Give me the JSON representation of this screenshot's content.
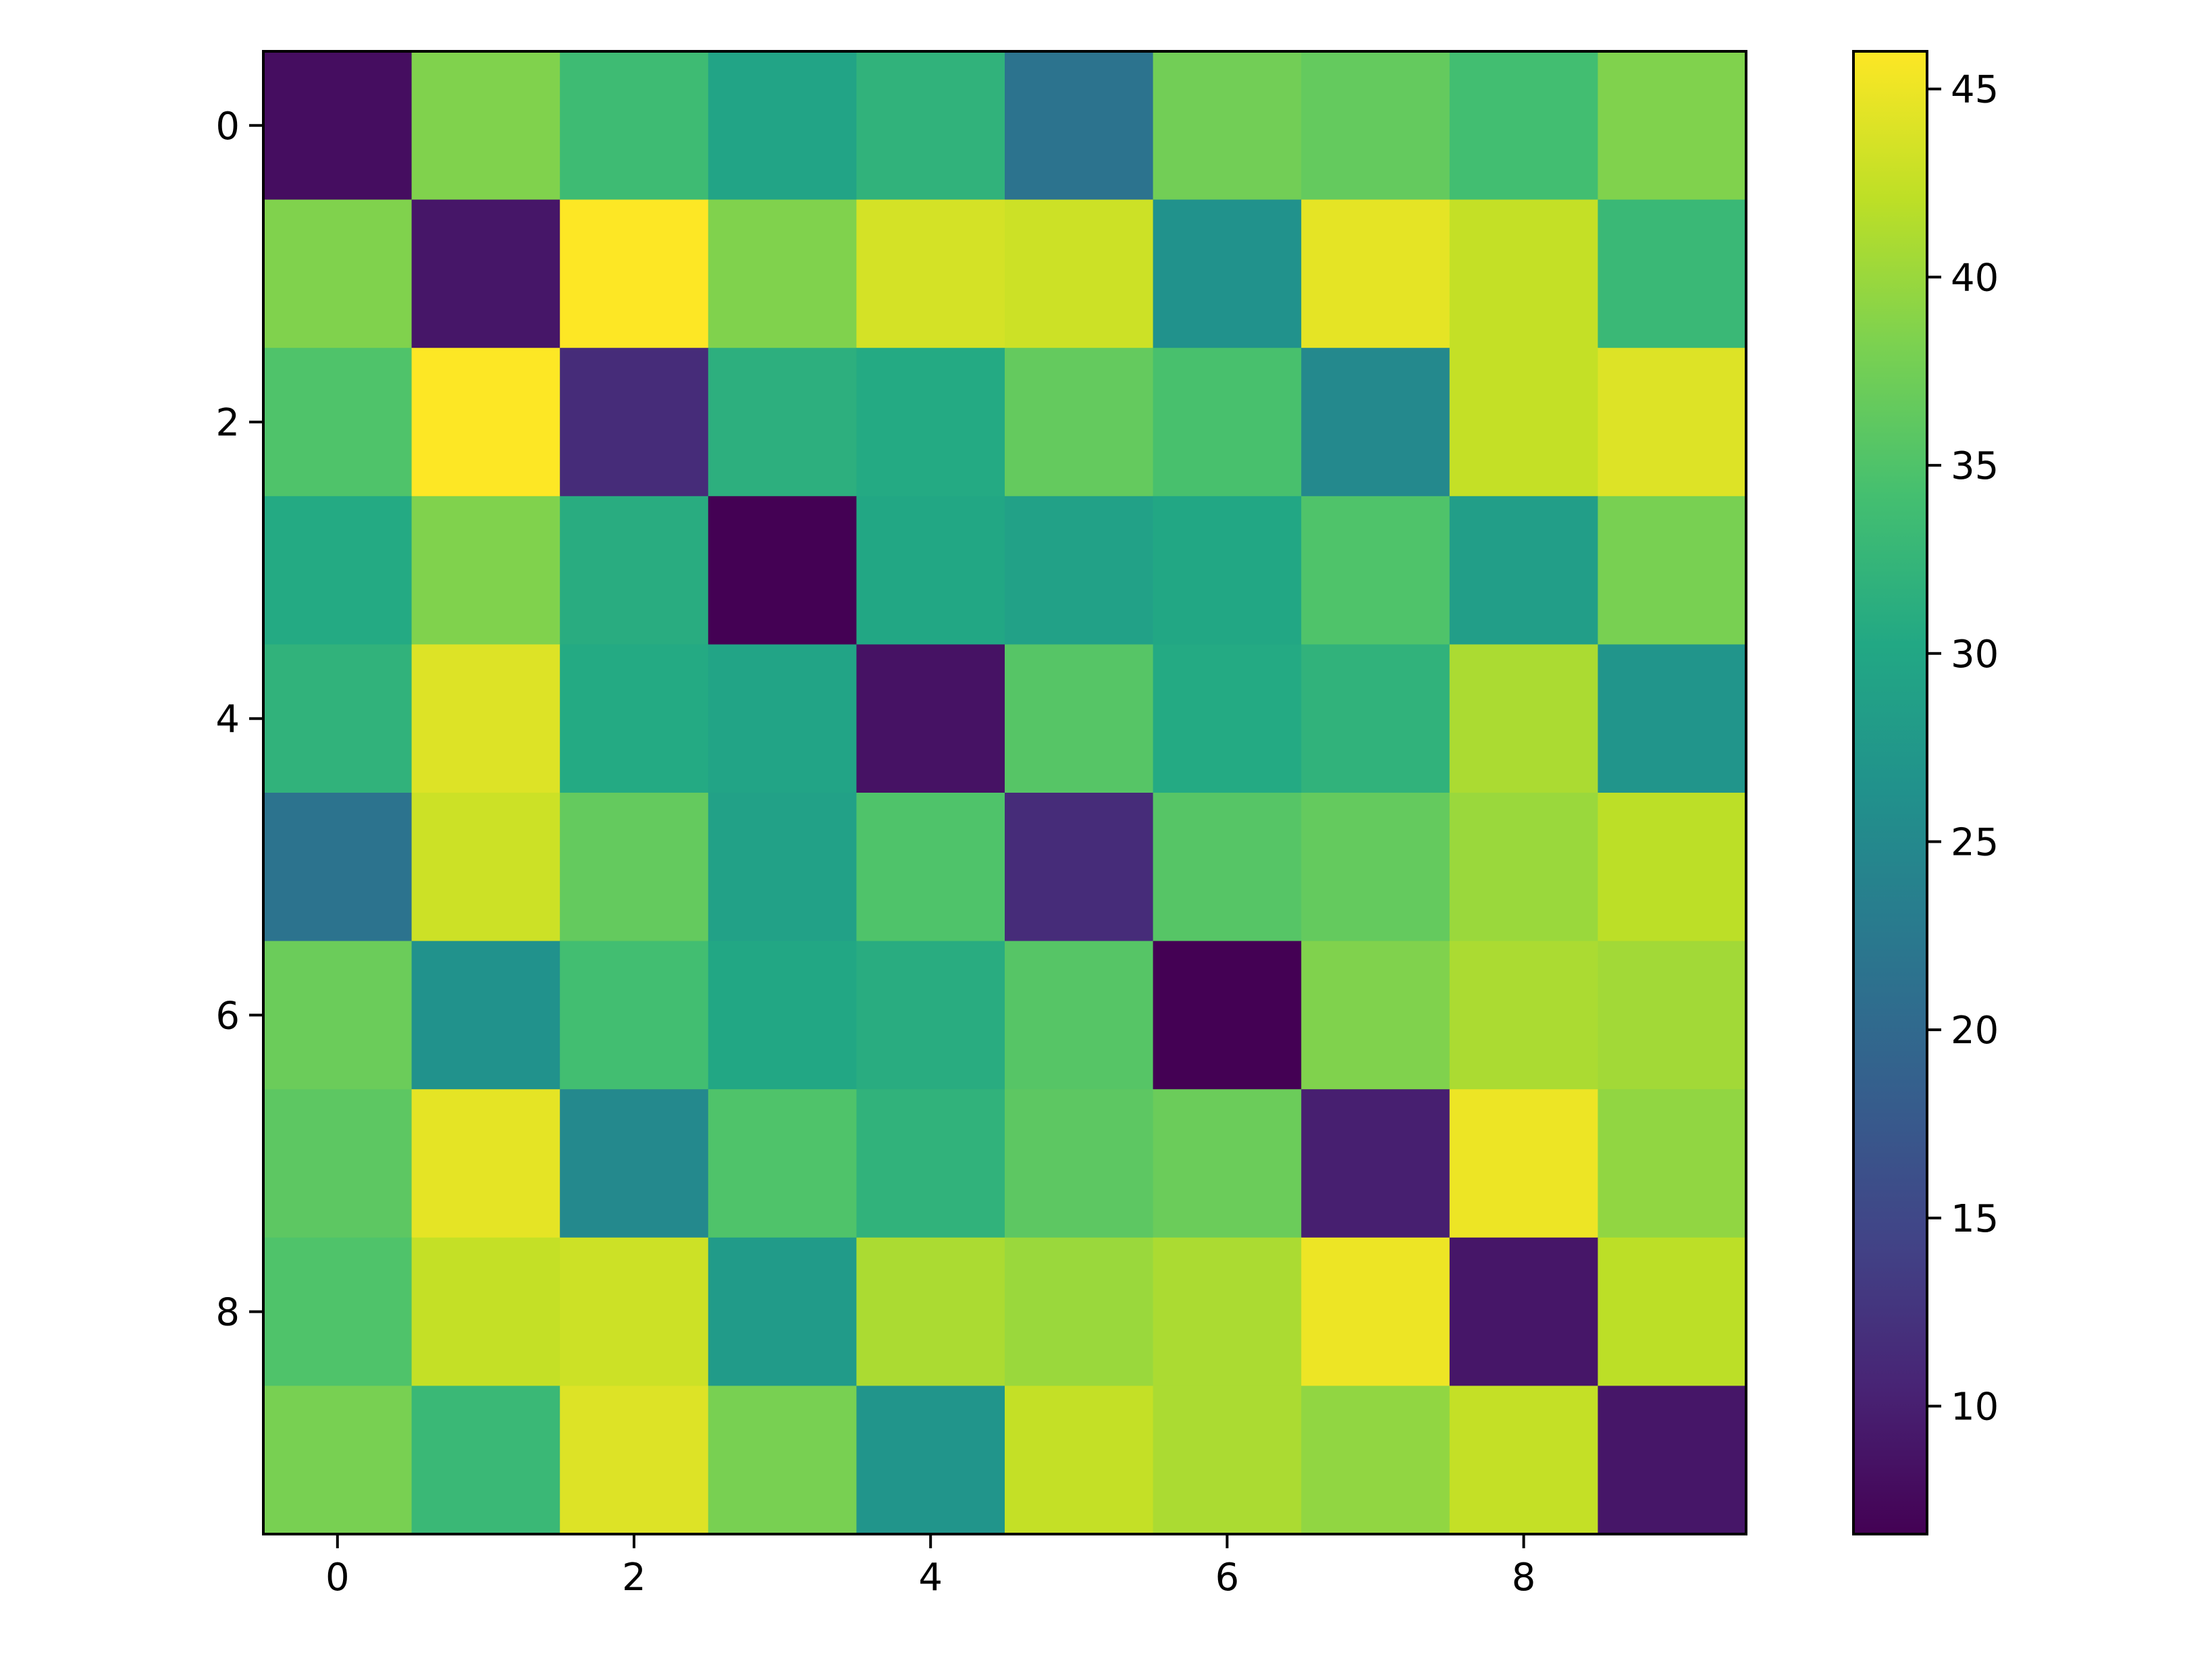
{
  "chart_data": {
    "type": "heatmap",
    "title": "",
    "xlabel": "",
    "ylabel": "",
    "grid": false,
    "colormap": "viridis",
    "x_ticks": [
      "0",
      "2",
      "4",
      "6",
      "8"
    ],
    "y_ticks": [
      "0",
      "2",
      "4",
      "6",
      "8"
    ],
    "colorbar": {
      "range": [
        6.6,
        46.0
      ],
      "ticks": [
        "10",
        "15",
        "20",
        "25",
        "30",
        "35",
        "40",
        "45"
      ]
    },
    "rows": 10,
    "cols": 10,
    "values": [
      [
        8.0,
        38.5,
        33.5,
        29.5,
        32.0,
        21.5,
        37.5,
        36.5,
        34.0,
        38.5
      ],
      [
        38.5,
        9.0,
        46.0,
        38.5,
        43.5,
        43.0,
        26.5,
        44.5,
        42.5,
        33.0
      ],
      [
        35.0,
        46.0,
        11.5,
        31.5,
        30.5,
        36.5,
        34.5,
        25.0,
        42.5,
        44.0
      ],
      [
        30.5,
        38.5,
        31.0,
        6.6,
        30.0,
        29.0,
        30.0,
        35.0,
        28.5,
        38.0
      ],
      [
        32.0,
        44.0,
        30.5,
        29.5,
        8.5,
        35.5,
        30.5,
        32.0,
        41.0,
        27.0
      ],
      [
        21.5,
        43.0,
        36.5,
        29.0,
        35.0,
        11.5,
        35.5,
        36.5,
        40.0,
        42.0
      ],
      [
        37.0,
        26.5,
        34.0,
        30.0,
        31.0,
        35.5,
        6.6,
        38.5,
        41.0,
        40.5
      ],
      [
        36.0,
        44.5,
        25.0,
        35.0,
        32.0,
        36.0,
        37.0,
        10.0,
        45.0,
        39.5
      ],
      [
        35.0,
        42.5,
        43.0,
        28.0,
        41.0,
        40.0,
        41.0,
        45.0,
        9.0,
        42.0
      ],
      [
        38.0,
        33.0,
        44.0,
        38.0,
        27.0,
        42.5,
        41.0,
        39.5,
        42.5,
        9.0
      ]
    ]
  }
}
